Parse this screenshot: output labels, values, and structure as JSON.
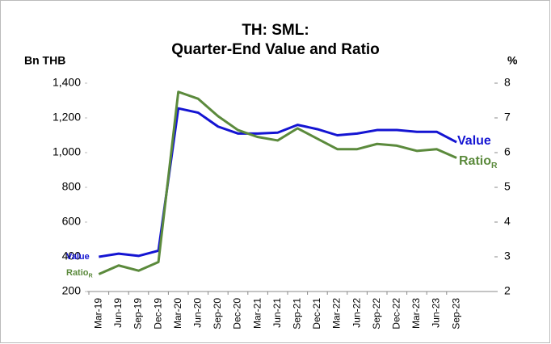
{
  "chart_data": {
    "type": "line",
    "title": [
      "TH: SML:",
      "Quarter-End Value and Ratio"
    ],
    "y_label": "Bn THB",
    "y2_label": "%",
    "categories": [
      "Mar-19",
      "Jun-19",
      "Sep-19",
      "Dec-19",
      "Mar-20",
      "Jun-20",
      "Sep-20",
      "Dec-20",
      "Mar-21",
      "Jun-21",
      "Sep-21",
      "Dec-21",
      "Mar-22",
      "Jun-22",
      "Sep-22",
      "Dec-22",
      "Mar-23",
      "Jun-23",
      "Sep-23"
    ],
    "series": [
      {
        "name": "Value",
        "color": "#1414d2",
        "values": [
          400,
          418,
          405,
          435,
          1255,
          1230,
          1150,
          1110,
          1110,
          1115,
          1160,
          1135,
          1100,
          1110,
          1130,
          1130,
          1120,
          1120,
          1060
        ]
      },
      {
        "name": "Ratio",
        "name_subscript": "R",
        "color": "#5b8a3c",
        "axis": "y2",
        "values": [
          2.5,
          2.75,
          2.6,
          2.85,
          7.75,
          7.55,
          7.05,
          6.65,
          6.45,
          6.35,
          6.7,
          6.4,
          6.1,
          6.1,
          6.25,
          6.2,
          6.05,
          6.1,
          5.85
        ]
      }
    ],
    "ylim": [
      200,
      1400
    ],
    "yticks": [
      200,
      400,
      600,
      800,
      {
        "value": 1000,
        "label": "1,000"
      },
      {
        "value": 1200,
        "label": "1,200"
      },
      {
        "value": 1400,
        "label": "1,400"
      }
    ],
    "y2lim": [
      2,
      8
    ],
    "y2ticks": [
      2,
      3,
      4,
      5,
      6,
      7,
      8
    ],
    "grid": false
  }
}
